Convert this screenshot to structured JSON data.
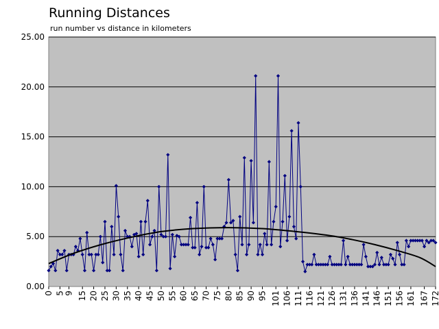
{
  "chart_data": {
    "type": "line",
    "title": "Running Distances",
    "subtitle": "run number vs distance in kilometers",
    "xlabel": "",
    "ylabel": "",
    "ylim": [
      0,
      25
    ],
    "y_ticks": [
      "0.00",
      "5.00",
      "10.00",
      "15.00",
      "20.00",
      "25.00"
    ],
    "x_ticks": [
      "0",
      "5",
      "9",
      "15",
      "20",
      "25",
      "30",
      "35",
      "40",
      "45",
      "50",
      "55",
      "60",
      "65",
      "70",
      "75",
      "80",
      "85",
      "90",
      "95",
      "101",
      "106",
      "111",
      "116",
      "121",
      "126",
      "131",
      "136",
      "141",
      "146",
      "151",
      "156",
      "161",
      "167",
      "172"
    ],
    "xlim": [
      0,
      172
    ],
    "grid": true,
    "legend": "none",
    "colors": {
      "plot_background": "#c0c0c0",
      "series": "#000080",
      "trendline": "#000000",
      "grid": "#000000"
    },
    "series": [
      {
        "values": [
          1.6,
          2.0,
          2.3,
          1.6,
          3.6,
          3.2,
          3.2,
          3.6,
          1.6,
          3.2,
          3.2,
          3.2,
          4.0,
          3.6,
          4.8,
          3.2,
          1.6,
          5.4,
          3.2,
          3.2,
          1.6,
          3.2,
          3.2,
          5.0,
          2.4,
          6.5,
          1.6,
          1.6,
          6.0,
          3.2,
          10.1,
          7.0,
          3.2,
          1.6,
          5.6,
          5.0,
          5.0,
          4.0,
          5.2,
          5.3,
          3.0,
          6.5,
          3.2,
          6.5,
          8.6,
          4.2,
          5.0,
          5.6,
          1.6,
          10.0,
          5.2,
          5.0,
          5.0,
          13.2,
          1.8,
          5.2,
          3.0,
          5.1,
          5.0,
          4.2,
          4.2,
          4.2,
          4.2,
          6.9,
          3.9,
          3.9,
          8.4,
          3.2,
          4.0,
          10.0,
          3.9,
          3.9,
          4.8,
          4.2,
          2.7,
          4.8,
          4.8,
          4.8,
          6.0,
          6.4,
          10.7,
          6.4,
          6.6,
          3.2,
          1.6,
          7.0,
          4.2,
          12.9,
          3.2,
          4.2,
          12.6,
          6.4,
          21.1,
          3.2,
          4.2,
          3.2,
          5.3,
          4.2,
          12.5,
          4.2,
          6.5,
          8.0,
          21.1,
          4.0,
          6.5,
          11.1,
          4.6,
          7.0,
          15.6,
          6.0,
          4.8,
          16.4,
          10.0,
          2.5,
          1.5,
          2.2,
          2.2,
          2.2,
          3.2,
          2.2,
          2.2,
          2.2,
          2.2,
          2.2,
          2.2,
          3.0,
          2.2,
          2.2,
          2.2,
          2.2,
          2.2,
          4.6,
          2.2,
          3.0,
          2.2,
          2.2,
          2.2,
          2.2,
          2.2,
          2.2,
          4.2,
          3.0,
          2.0,
          2.0,
          2.0,
          2.2,
          3.4,
          2.2,
          2.9,
          2.2,
          2.2,
          2.2,
          3.2,
          2.8,
          2.2,
          4.4,
          3.2,
          2.2,
          2.2,
          4.6,
          4.0,
          4.6,
          4.6,
          4.6,
          4.6,
          4.6,
          4.6,
          4.0,
          4.6,
          4.4,
          4.6,
          4.6,
          4.4
        ]
      }
    ],
    "trendline": {
      "type": "polynomial",
      "values": [
        2.3,
        3.4,
        4.3,
        5.0,
        5.5,
        5.8,
        5.9,
        5.8,
        5.5,
        5.1,
        4.7,
        4.2,
        3.6,
        2.9,
        2.0
      ],
      "x": [
        0,
        12,
        25,
        38,
        50,
        64,
        80,
        95,
        110,
        125,
        135,
        145,
        155,
        165,
        172
      ]
    }
  }
}
